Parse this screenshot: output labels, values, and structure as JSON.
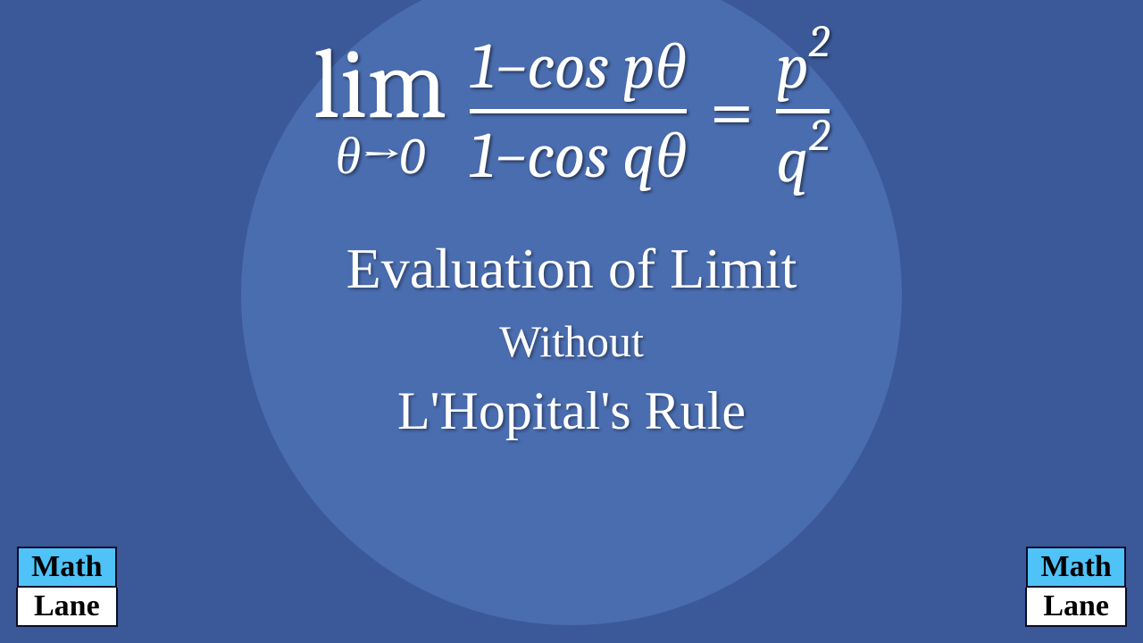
{
  "equation": {
    "lim_text": "lim",
    "lim_sub": "θ→0",
    "numerator": "1−cos pθ",
    "denominator": "1−cos qθ",
    "equals": "=",
    "result_num": "p",
    "result_num_exp": "2",
    "result_den": "q",
    "result_den_exp": "2"
  },
  "caption": {
    "line1": "Evaluation of Limit",
    "line2": "Without",
    "line3": "L'Hopital's Rule"
  },
  "logo": {
    "top": "Math",
    "bottom": "Lane"
  },
  "colors": {
    "background": "#3b5998",
    "circle": "#4a6db0",
    "text": "#ffffff",
    "logo_top_bg": "#4fc3f7",
    "logo_bot_bg": "#ffffff",
    "logo_text": "#000000"
  }
}
